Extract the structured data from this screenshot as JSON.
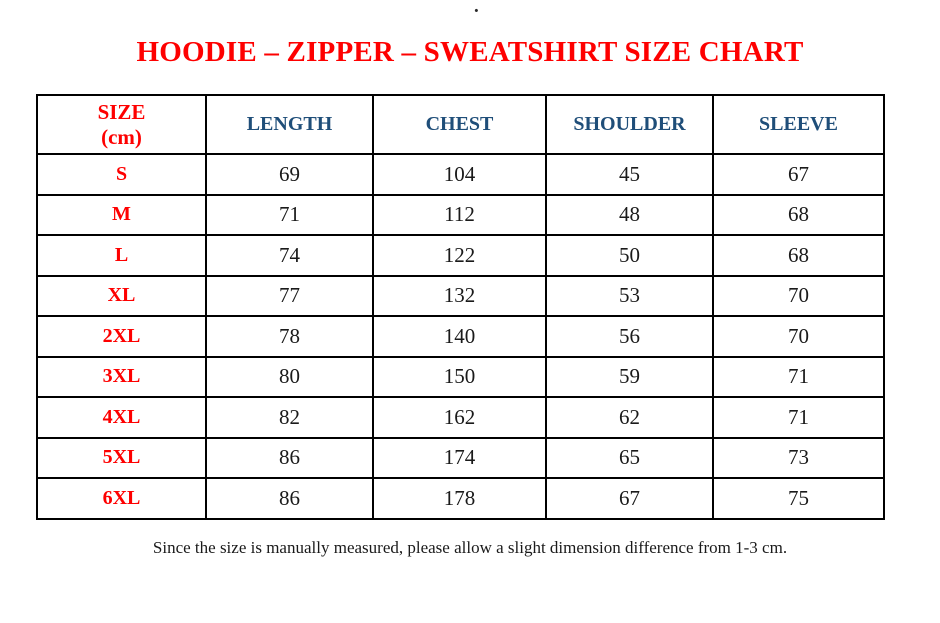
{
  "stray_mark": ".",
  "title": "HOODIE – ZIPPER – SWEATSHIRT SIZE CHART",
  "table": {
    "header": {
      "size_label_line1": "SIZE",
      "size_label_line2": "(cm)",
      "columns": [
        "LENGTH",
        "CHEST",
        "SHOULDER",
        "SLEEVE"
      ]
    },
    "rows": [
      {
        "size": "S",
        "length": "69",
        "chest": "104",
        "shoulder": "45",
        "sleeve": "67"
      },
      {
        "size": "M",
        "length": "71",
        "chest": "112",
        "shoulder": "48",
        "sleeve": "68"
      },
      {
        "size": "L",
        "length": "74",
        "chest": "122",
        "shoulder": "50",
        "sleeve": "68"
      },
      {
        "size": "XL",
        "length": "77",
        "chest": "132",
        "shoulder": "53",
        "sleeve": "70"
      },
      {
        "size": "2XL",
        "length": "78",
        "chest": "140",
        "shoulder": "56",
        "sleeve": "70"
      },
      {
        "size": "3XL",
        "length": "80",
        "chest": "150",
        "shoulder": "59",
        "sleeve": "71"
      },
      {
        "size": "4XL",
        "length": "82",
        "chest": "162",
        "shoulder": "62",
        "sleeve": "71"
      },
      {
        "size": "5XL",
        "length": "86",
        "chest": "174",
        "shoulder": "65",
        "sleeve": "73"
      },
      {
        "size": "6XL",
        "length": "86",
        "chest": "178",
        "shoulder": "67",
        "sleeve": "75"
      }
    ]
  },
  "footnote": "Since the size is manually measured, please allow a slight dimension difference from 1-3 cm.",
  "colors": {
    "title_red": "#fe0000",
    "header_blue": "#1f4e79",
    "body_text": "#1a1a1a",
    "border": "#000000",
    "background": "#ffffff"
  }
}
